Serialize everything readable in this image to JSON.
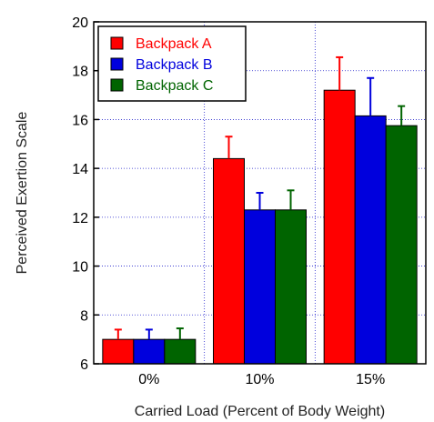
{
  "chart_data": {
    "type": "bar",
    "categories": [
      "0%",
      "10%",
      "15%"
    ],
    "series": [
      {
        "name": "Backpack A",
        "color": "#ff0000",
        "values": [
          7.0,
          14.4,
          17.2
        ],
        "error": [
          0.4,
          0.9,
          1.35
        ]
      },
      {
        "name": "Backpack B",
        "color": "#0000dd",
        "values": [
          7.0,
          12.3,
          16.15
        ],
        "error": [
          0.4,
          0.7,
          1.55
        ]
      },
      {
        "name": "Backpack C",
        "color": "#006400",
        "values": [
          7.0,
          12.3,
          15.75
        ],
        "error": [
          0.45,
          0.8,
          0.8
        ]
      }
    ],
    "xlabel": "Carried Load (Percent of Body Weight)",
    "ylabel": "Perceived Exertion Scale",
    "ylim": [
      6,
      20
    ],
    "yticks": [
      6,
      8,
      10,
      12,
      14,
      16,
      18,
      20
    ],
    "grid": "dotted-blue",
    "legend_position": "top-left"
  }
}
